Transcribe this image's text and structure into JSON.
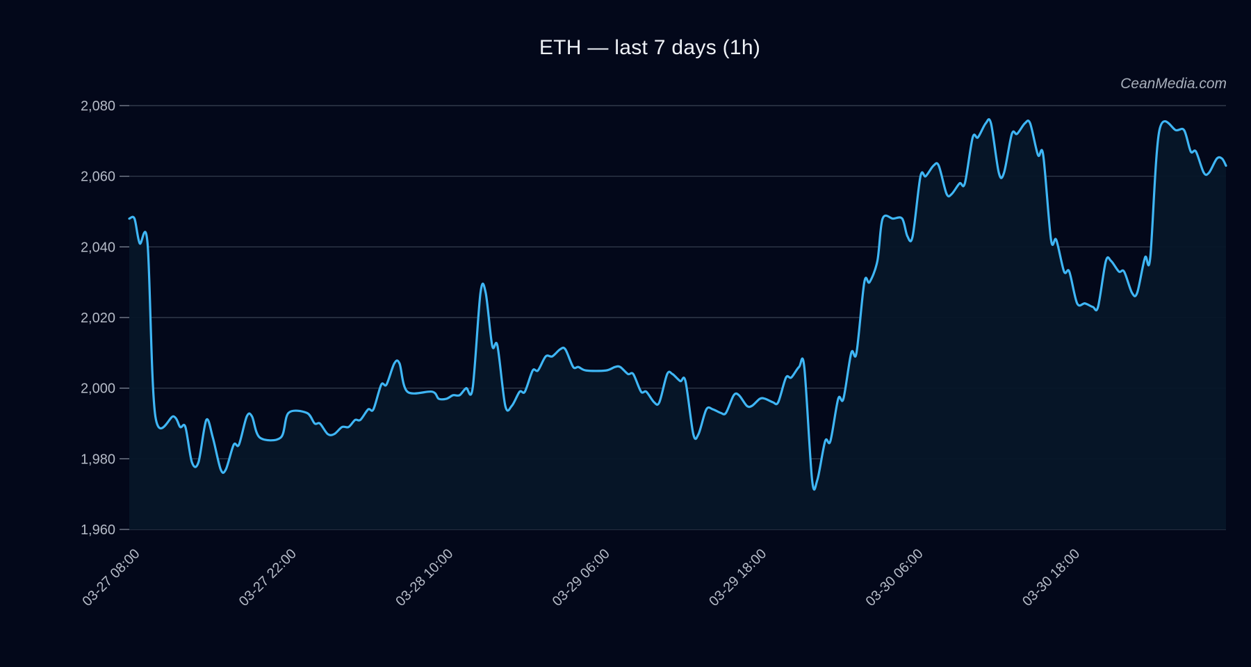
{
  "colors": {
    "background": "#03081a",
    "line": "#3fb6f5",
    "area": "#061628",
    "grid": "#3a4354",
    "text": "#b6bcc8",
    "title": "#eef1f6"
  },
  "watermark": "CeanMedia.com",
  "chart_data": {
    "type": "area",
    "title": "ETH — last 7 days (1h)",
    "xlabel": "",
    "ylabel": "",
    "ylim": [
      1960,
      2080
    ],
    "yticks": [
      1960,
      1980,
      2000,
      2020,
      2040,
      2060,
      2080
    ],
    "grid": true,
    "xlim": [
      0,
      84
    ],
    "xticks": [
      {
        "hour": 0,
        "label": "03-27 08:00"
      },
      {
        "hour": 12,
        "label": "03-27 22:00"
      },
      {
        "hour": 24,
        "label": "03-28 10:00"
      },
      {
        "hour": 36,
        "label": "03-29 06:00"
      },
      {
        "hour": 48,
        "label": "03-29 18:00"
      },
      {
        "hour": 60,
        "label": "03-30 06:00"
      },
      {
        "hour": 72,
        "label": "03-30 18:00"
      }
    ],
    "series": [
      {
        "points": [
          [
            0,
            2048
          ],
          [
            0.4,
            2048
          ],
          [
            0.8,
            2041
          ],
          [
            1.4,
            2041
          ],
          [
            2,
            1992
          ],
          [
            3.4,
            1992
          ],
          [
            3.9,
            1989
          ],
          [
            4.3,
            1989
          ],
          [
            4.8,
            1979
          ],
          [
            5.3,
            1979
          ],
          [
            5.9,
            1991
          ],
          [
            6.4,
            1986
          ],
          [
            7,
            1977
          ],
          [
            7.4,
            1977
          ],
          [
            8,
            1984
          ],
          [
            8.4,
            1984
          ],
          [
            9,
            1992
          ],
          [
            9.4,
            1992
          ],
          [
            10,
            1986
          ],
          [
            11.6,
            1986
          ],
          [
            12.2,
            1993
          ],
          [
            13.6,
            1993
          ],
          [
            14.2,
            1990
          ],
          [
            14.6,
            1990
          ],
          [
            15.2,
            1987
          ],
          [
            15.7,
            1987
          ],
          [
            16.3,
            1989
          ],
          [
            16.8,
            1989
          ],
          [
            17.3,
            1991
          ],
          [
            17.7,
            1991
          ],
          [
            18.3,
            1994
          ],
          [
            18.7,
            1994
          ],
          [
            19.3,
            2001
          ],
          [
            19.7,
            2001
          ],
          [
            20.3,
            2007
          ],
          [
            20.7,
            2007
          ],
          [
            21.3,
            1999
          ],
          [
            23.2,
            1999
          ],
          [
            23.7,
            1997
          ],
          [
            24.3,
            1997
          ],
          [
            24.8,
            1998
          ],
          [
            25.3,
            1998
          ],
          [
            25.8,
            2000
          ],
          [
            26.3,
            2000
          ],
          [
            26.9,
            2027
          ],
          [
            27.3,
            2027
          ],
          [
            27.8,
            2012
          ],
          [
            28.2,
            2012
          ],
          [
            28.8,
            1995
          ],
          [
            29.3,
            1995
          ],
          [
            29.9,
            1999
          ],
          [
            30.3,
            1999
          ],
          [
            30.9,
            2005
          ],
          [
            31.3,
            2005
          ],
          [
            31.9,
            2009
          ],
          [
            32.4,
            2009
          ],
          [
            33,
            2011
          ],
          [
            33.4,
            2011
          ],
          [
            34,
            2006
          ],
          [
            34.4,
            2006
          ],
          [
            35,
            2005
          ],
          [
            36.5,
            2005
          ],
          [
            37.2,
            2006
          ],
          [
            37.6,
            2006
          ],
          [
            38.2,
            2004
          ],
          [
            38.6,
            2004
          ],
          [
            39.2,
            1999
          ],
          [
            39.6,
            1999
          ],
          [
            40.2,
            1996
          ],
          [
            40.6,
            1996
          ],
          [
            41.2,
            2004
          ],
          [
            41.6,
            2004
          ],
          [
            42.2,
            2002
          ],
          [
            42.6,
            2002
          ],
          [
            43.2,
            1987
          ],
          [
            43.6,
            1987
          ],
          [
            44.2,
            1994
          ],
          [
            44.7,
            1994
          ],
          [
            45.3,
            1993
          ],
          [
            45.7,
            1993
          ],
          [
            46.3,
            1998
          ],
          [
            46.7,
            1998
          ],
          [
            47.3,
            1995
          ],
          [
            47.7,
            1995
          ],
          [
            48.3,
            1997
          ],
          [
            48.7,
            1997
          ],
          [
            49.3,
            1996
          ],
          [
            49.7,
            1996
          ],
          [
            50.3,
            2003
          ],
          [
            50.7,
            2003
          ],
          [
            51.3,
            2006
          ],
          [
            51.7,
            2006
          ],
          [
            52.3,
            1974
          ],
          [
            52.7,
            1974
          ],
          [
            53.3,
            1985
          ],
          [
            53.7,
            1985
          ],
          [
            54.3,
            1997
          ],
          [
            54.7,
            1997
          ],
          [
            55.3,
            2010
          ],
          [
            55.7,
            2010
          ],
          [
            56.3,
            2030
          ],
          [
            56.7,
            2030
          ],
          [
            57.3,
            2036
          ],
          [
            57.7,
            2048
          ],
          [
            58.5,
            2048
          ],
          [
            59.2,
            2048
          ],
          [
            59.6,
            2043
          ],
          [
            60,
            2043
          ],
          [
            60.6,
            2060
          ],
          [
            61,
            2060
          ],
          [
            61.6,
            2063
          ],
          [
            62,
            2063
          ],
          [
            62.6,
            2055
          ],
          [
            63,
            2055
          ],
          [
            63.6,
            2058
          ],
          [
            64,
            2058
          ],
          [
            64.6,
            2071
          ],
          [
            65,
            2071
          ],
          [
            65.6,
            2075
          ],
          [
            66,
            2075
          ],
          [
            66.6,
            2061
          ],
          [
            67,
            2061
          ],
          [
            67.6,
            2072
          ],
          [
            68,
            2072
          ],
          [
            68.6,
            2075
          ],
          [
            69,
            2075
          ],
          [
            69.6,
            2066
          ],
          [
            70,
            2066
          ],
          [
            70.6,
            2042
          ],
          [
            71,
            2042
          ],
          [
            71.6,
            2033
          ],
          [
            72,
            2033
          ],
          [
            72.6,
            2024
          ],
          [
            73.2,
            2024
          ],
          [
            73.8,
            2023
          ],
          [
            74.2,
            2023
          ],
          [
            74.8,
            2036
          ],
          [
            75.2,
            2036
          ],
          [
            75.8,
            2033
          ],
          [
            76.2,
            2033
          ],
          [
            76.8,
            2027
          ],
          [
            77.2,
            2027
          ],
          [
            77.8,
            2037
          ],
          [
            78.2,
            2037
          ],
          [
            78.9,
            2073
          ],
          [
            80.2,
            2073
          ],
          [
            80.8,
            2073
          ],
          [
            81.3,
            2067
          ],
          [
            81.7,
            2067
          ],
          [
            82.3,
            2061
          ],
          [
            82.7,
            2061
          ],
          [
            83.3,
            2065
          ],
          [
            83.7,
            2065
          ],
          [
            84,
            2063
          ]
        ]
      }
    ]
  }
}
